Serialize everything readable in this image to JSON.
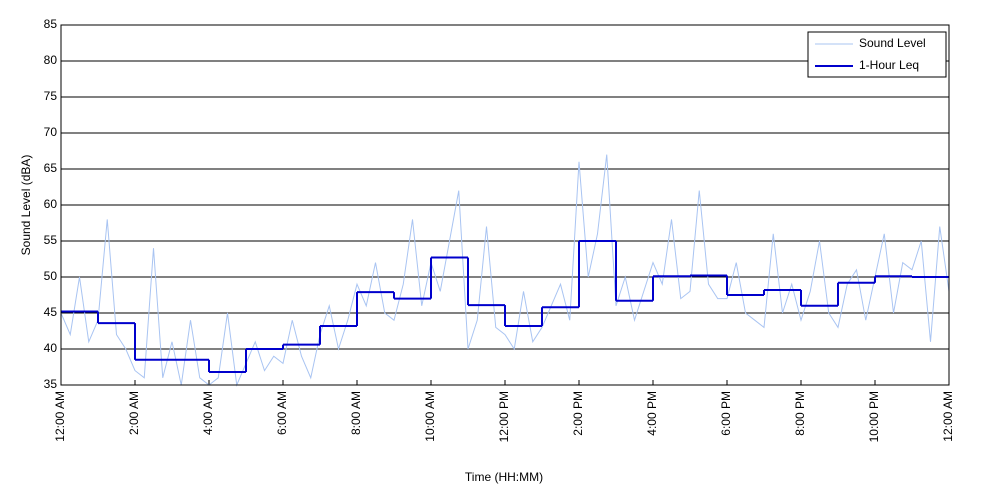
{
  "chart_data": {
    "type": "line",
    "xlabel": "Time (HH:MM)",
    "ylabel": "Sound Level (dBA)",
    "xlim": [
      0,
      24
    ],
    "ylim": [
      35,
      85
    ],
    "yticks": [
      35,
      40,
      45,
      50,
      55,
      60,
      65,
      70,
      75,
      80,
      85
    ],
    "xticks": [
      {
        "value": 0,
        "label": "12:00 AM"
      },
      {
        "value": 2,
        "label": "2:00 AM"
      },
      {
        "value": 4,
        "label": "4:00 AM"
      },
      {
        "value": 6,
        "label": "6:00 AM"
      },
      {
        "value": 8,
        "label": "8:00 AM"
      },
      {
        "value": 10,
        "label": "10:00 AM"
      },
      {
        "value": 12,
        "label": "12:00 PM"
      },
      {
        "value": 14,
        "label": "2:00 PM"
      },
      {
        "value": 16,
        "label": "4:00 PM"
      },
      {
        "value": 18,
        "label": "6:00 PM"
      },
      {
        "value": 20,
        "label": "8:00 PM"
      },
      {
        "value": 22,
        "label": "10:00 PM"
      },
      {
        "value": 24,
        "label": "12:00 AM"
      }
    ],
    "grid": true,
    "legend": "upper right",
    "series": [
      {
        "name": "Sound Level",
        "color": "#a9c4f2",
        "drawstyle": "default",
        "x": [
          0,
          0.25,
          0.5,
          0.75,
          1,
          1.25,
          1.5,
          1.75,
          2,
          2.25,
          2.5,
          2.75,
          3,
          3.25,
          3.5,
          3.75,
          4,
          4.25,
          4.5,
          4.75,
          5,
          5.25,
          5.5,
          5.75,
          6,
          6.25,
          6.5,
          6.75,
          7,
          7.25,
          7.5,
          7.75,
          8,
          8.25,
          8.5,
          8.75,
          9,
          9.25,
          9.5,
          9.75,
          10,
          10.25,
          10.5,
          10.75,
          11,
          11.25,
          11.5,
          11.75,
          12,
          12.25,
          12.5,
          12.75,
          13,
          13.25,
          13.5,
          13.75,
          14,
          14.25,
          14.5,
          14.75,
          15,
          15.25,
          15.5,
          15.75,
          16,
          16.25,
          16.5,
          16.75,
          17,
          17.25,
          17.5,
          17.75,
          18,
          18.25,
          18.5,
          18.75,
          19,
          19.25,
          19.5,
          19.75,
          20,
          20.25,
          20.5,
          20.75,
          21,
          21.25,
          21.5,
          21.75,
          22,
          22.25,
          22.5,
          22.75,
          23,
          23.25,
          23.5,
          23.75,
          24
        ],
        "values": [
          45,
          42,
          50,
          41,
          44,
          58,
          42,
          40,
          37,
          36,
          54,
          36,
          41,
          35,
          44,
          36,
          35,
          36,
          45,
          35,
          38,
          41,
          37,
          39,
          38,
          44,
          39,
          36,
          42,
          46,
          40,
          44,
          49,
          46,
          52,
          45,
          44,
          49,
          58,
          46,
          52,
          48,
          55,
          62,
          40,
          44,
          57,
          43,
          42,
          40,
          48,
          41,
          43,
          46,
          49,
          44,
          66,
          50,
          56,
          67,
          46,
          50,
          44,
          48,
          52,
          49,
          58,
          47,
          48,
          62,
          49,
          47,
          47,
          52,
          45,
          44,
          43,
          56,
          45,
          49,
          44,
          48,
          55,
          45,
          43,
          49,
          51,
          44,
          50,
          56,
          45,
          52,
          51,
          55,
          41,
          57,
          48
        ]
      },
      {
        "name": "1-Hour Leq",
        "color": "#0000cc",
        "drawstyle": "steps-post",
        "x": [
          0,
          1,
          2,
          3,
          4,
          5,
          6,
          7,
          8,
          9,
          10,
          11,
          12,
          13,
          14,
          15,
          16,
          17,
          18,
          19,
          20,
          21,
          22,
          23
        ],
        "values": [
          45.2,
          43.6,
          38.5,
          38.5,
          36.8,
          40.0,
          40.6,
          43.2,
          47.9,
          47.0,
          52.7,
          46.1,
          43.2,
          45.8,
          55.0,
          46.7,
          50.1,
          50.2,
          47.5,
          48.2,
          46.0,
          49.2,
          50.1,
          50.0
        ]
      }
    ]
  }
}
